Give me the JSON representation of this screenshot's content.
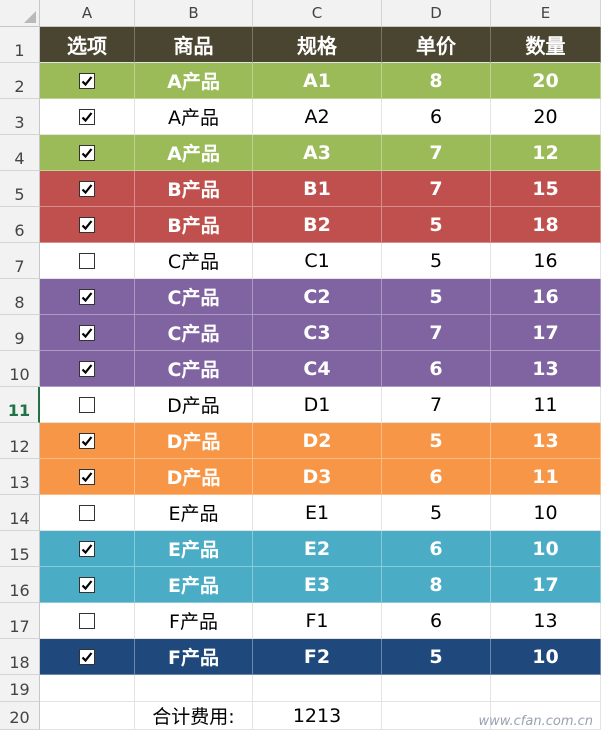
{
  "columns": [
    "A",
    "B",
    "C",
    "D",
    "E"
  ],
  "header_bg": "#4a4531",
  "header": [
    "选项",
    "商品",
    "规格",
    "单价",
    "数量"
  ],
  "rows": [
    {
      "num": "1",
      "header": true
    },
    {
      "num": "2",
      "checked": true,
      "product": "A产品",
      "spec": "A1",
      "price": "8",
      "qty": "20",
      "bg": "#9bbb59",
      "fg": "#ffffff"
    },
    {
      "num": "3",
      "checked": true,
      "product": "A产品",
      "spec": "A2",
      "price": "6",
      "qty": "20",
      "bg": "#ffffff",
      "fg": "#000000"
    },
    {
      "num": "4",
      "checked": true,
      "product": "A产品",
      "spec": "A3",
      "price": "7",
      "qty": "12",
      "bg": "#9bbb59",
      "fg": "#ffffff"
    },
    {
      "num": "5",
      "checked": true,
      "product": "B产品",
      "spec": "B1",
      "price": "7",
      "qty": "15",
      "bg": "#c0504d",
      "fg": "#ffffff"
    },
    {
      "num": "6",
      "checked": true,
      "product": "B产品",
      "spec": "B2",
      "price": "5",
      "qty": "18",
      "bg": "#c0504d",
      "fg": "#ffffff"
    },
    {
      "num": "7",
      "checked": false,
      "product": "C产品",
      "spec": "C1",
      "price": "5",
      "qty": "16",
      "bg": "#ffffff",
      "fg": "#000000"
    },
    {
      "num": "8",
      "checked": true,
      "product": "C产品",
      "spec": "C2",
      "price": "5",
      "qty": "16",
      "bg": "#8064a2",
      "fg": "#ffffff"
    },
    {
      "num": "9",
      "checked": true,
      "product": "C产品",
      "spec": "C3",
      "price": "7",
      "qty": "17",
      "bg": "#8064a2",
      "fg": "#ffffff"
    },
    {
      "num": "10",
      "checked": true,
      "product": "C产品",
      "spec": "C4",
      "price": "6",
      "qty": "13",
      "bg": "#8064a2",
      "fg": "#ffffff"
    },
    {
      "num": "11",
      "checked": false,
      "product": "D产品",
      "spec": "D1",
      "price": "7",
      "qty": "11",
      "bg": "#ffffff",
      "fg": "#000000",
      "active": true
    },
    {
      "num": "12",
      "checked": true,
      "product": "D产品",
      "spec": "D2",
      "price": "5",
      "qty": "13",
      "bg": "#f79646",
      "fg": "#ffffff"
    },
    {
      "num": "13",
      "checked": true,
      "product": "D产品",
      "spec": "D3",
      "price": "6",
      "qty": "11",
      "bg": "#f79646",
      "fg": "#ffffff"
    },
    {
      "num": "14",
      "checked": false,
      "product": "E产品",
      "spec": "E1",
      "price": "5",
      "qty": "10",
      "bg": "#ffffff",
      "fg": "#000000"
    },
    {
      "num": "15",
      "checked": true,
      "product": "E产品",
      "spec": "E2",
      "price": "6",
      "qty": "10",
      "bg": "#4bacc6",
      "fg": "#ffffff"
    },
    {
      "num": "16",
      "checked": true,
      "product": "E产品",
      "spec": "E3",
      "price": "8",
      "qty": "17",
      "bg": "#4bacc6",
      "fg": "#ffffff"
    },
    {
      "num": "17",
      "checked": false,
      "product": "F产品",
      "spec": "F1",
      "price": "6",
      "qty": "13",
      "bg": "#ffffff",
      "fg": "#000000"
    },
    {
      "num": "18",
      "checked": true,
      "product": "F产品",
      "spec": "F2",
      "price": "5",
      "qty": "10",
      "bg": "#1f497d",
      "fg": "#ffffff"
    },
    {
      "num": "19",
      "empty": true
    },
    {
      "num": "20",
      "total": true
    }
  ],
  "total_label": "合计费用:",
  "total_value": "1213",
  "watermark": "www.cfan.com.cn"
}
